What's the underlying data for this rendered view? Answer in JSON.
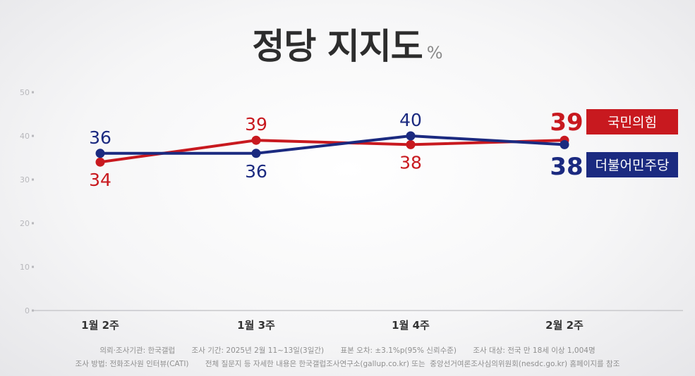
{
  "title": "정당 지지도",
  "unit": "%",
  "chart_data": {
    "type": "line",
    "categories": [
      "1월 2주",
      "1월 3주",
      "1월 4주",
      "2월 2주"
    ],
    "y_ticks": [
      0,
      10,
      20,
      30,
      40,
      50
    ],
    "ylim": [
      0,
      50
    ],
    "grid": false,
    "legend_position": "right",
    "series": [
      {
        "name": "국민의힘",
        "color": "#c8191f",
        "values": [
          34,
          39,
          38,
          39
        ]
      },
      {
        "name": "더불어민주당",
        "color": "#1b2a80",
        "values": [
          36,
          36,
          40,
          38
        ]
      }
    ]
  },
  "footnotes": {
    "line1": "의뢰·조사기관: 한국갤럽       조사 기간: 2025년 2월 11~13일(3일간)       표본 오차: ±3.1%p(95% 신뢰수준)       조사 대상: 전국 만 18세 이상 1,004명",
    "line2": "조사 방법: 전화조사원 인터뷰(CATI)       전체 질문지 등 자세한 내용은 한국갤럽조사연구소(gallup.co.kr) 또는  중앙선거여론조사심의위원회(nesdc.go.kr) 홈페이지를 참조"
  }
}
